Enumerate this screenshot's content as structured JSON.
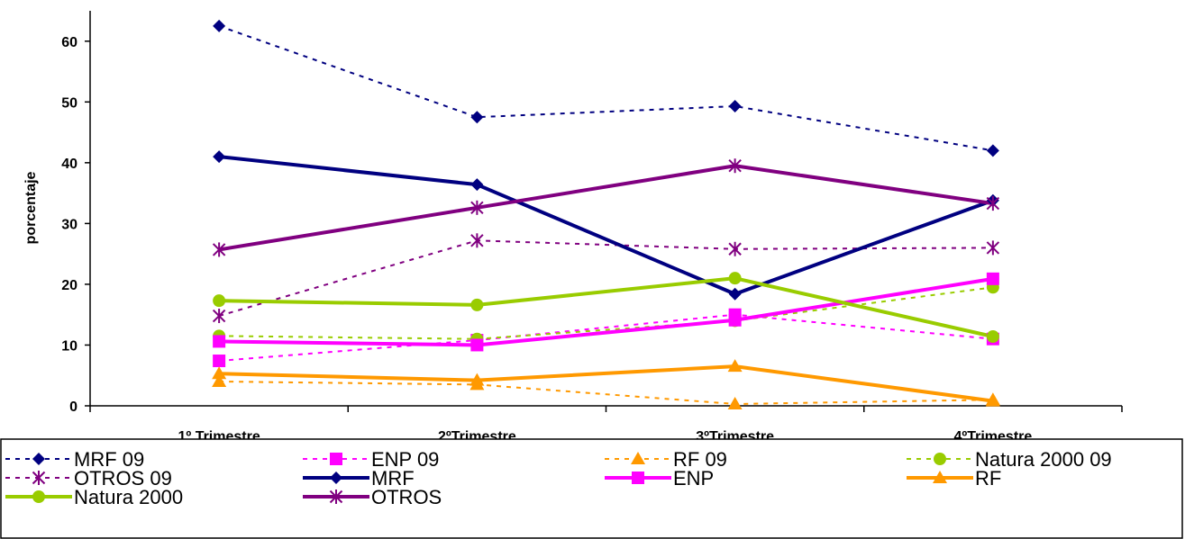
{
  "chart_data": {
    "type": "line",
    "title": "",
    "xlabel": "",
    "ylabel": "porcentaje",
    "categories": [
      "1º Trimestre",
      "2ºTrimestre",
      "3ºTrimestre",
      "4ºTrimestre"
    ],
    "ylim": [
      0,
      65
    ],
    "yticks": [
      0,
      10,
      20,
      30,
      40,
      50,
      60
    ],
    "grid": false,
    "legend_position": "bottom",
    "series": [
      {
        "name": "MRF 09",
        "values": [
          62.5,
          47.5,
          49.3,
          42.0
        ],
        "color": "#000080",
        "dash": true,
        "marker": "diamond"
      },
      {
        "name": "ENP 09",
        "values": [
          7.4,
          10.8,
          15.0,
          11.0
        ],
        "color": "#FF00FF",
        "dash": true,
        "marker": "square"
      },
      {
        "name": "RF 09",
        "values": [
          4.0,
          3.5,
          0.3,
          1.0
        ],
        "color": "#FF9900",
        "dash": true,
        "marker": "triangle"
      },
      {
        "name": "Natura 2000 09",
        "values": [
          11.5,
          11.0,
          14.0,
          19.5
        ],
        "color": "#99CC00",
        "dash": true,
        "marker": "circle"
      },
      {
        "name": "OTROS 09",
        "values": [
          14.8,
          27.2,
          25.8,
          26.0
        ],
        "color": "#800080",
        "dash": true,
        "marker": "star"
      },
      {
        "name": "MRF",
        "values": [
          41.0,
          36.4,
          18.4,
          33.8
        ],
        "color": "#000080",
        "dash": false,
        "marker": "diamond"
      },
      {
        "name": "ENP",
        "values": [
          10.6,
          10.0,
          14.1,
          20.9
        ],
        "color": "#FF00FF",
        "dash": false,
        "marker": "square"
      },
      {
        "name": "RF",
        "values": [
          5.3,
          4.2,
          6.5,
          0.8
        ],
        "color": "#FF9900",
        "dash": false,
        "marker": "triangle"
      },
      {
        "name": "Natura 2000",
        "values": [
          17.3,
          16.6,
          21.0,
          11.4
        ],
        "color": "#99CC00",
        "dash": false,
        "marker": "circle"
      },
      {
        "name": "OTROS",
        "values": [
          25.7,
          32.6,
          39.5,
          33.3
        ],
        "color": "#800080",
        "dash": false,
        "marker": "star"
      }
    ]
  }
}
